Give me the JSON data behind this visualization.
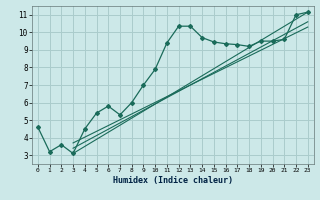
{
  "xlabel": "Humidex (Indice chaleur)",
  "bg_color": "#cce8e8",
  "grid_color": "#aacccc",
  "line_color": "#1a6b5a",
  "xlim": [
    -0.5,
    23.5
  ],
  "ylim": [
    2.5,
    11.5
  ],
  "xticks": [
    0,
    1,
    2,
    3,
    4,
    5,
    6,
    7,
    8,
    9,
    10,
    11,
    12,
    13,
    14,
    15,
    16,
    17,
    18,
    19,
    20,
    21,
    22,
    23
  ],
  "yticks": [
    3,
    4,
    5,
    6,
    7,
    8,
    9,
    10,
    11
  ],
  "series1_x": [
    0,
    1,
    2,
    3,
    4,
    5,
    6,
    7,
    8,
    9,
    10,
    11,
    12,
    13,
    14,
    15,
    16,
    17,
    18,
    19,
    20,
    21,
    22,
    23
  ],
  "series1_y": [
    4.6,
    3.2,
    3.6,
    3.1,
    4.5,
    5.4,
    5.8,
    5.3,
    6.0,
    7.0,
    7.9,
    9.4,
    10.35,
    10.35,
    9.7,
    9.45,
    9.35,
    9.3,
    9.2,
    9.5,
    9.5,
    9.6,
    11.0,
    11.15
  ],
  "line1_x": [
    3,
    23
  ],
  "line1_y": [
    3.1,
    11.15
  ],
  "line2_x": [
    3,
    23
  ],
  "line2_y": [
    3.4,
    10.6
  ],
  "line3_x": [
    3,
    23
  ],
  "line3_y": [
    3.7,
    10.3
  ]
}
